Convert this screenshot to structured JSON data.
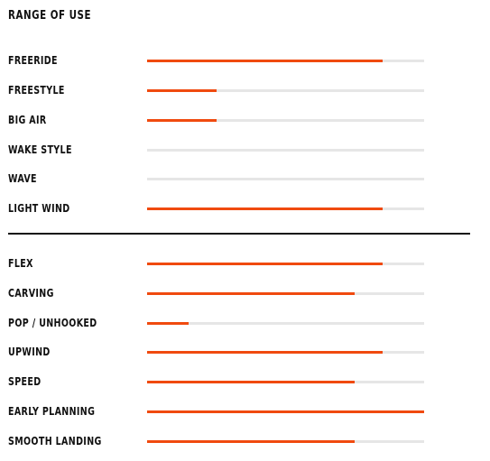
{
  "title": "RANGE OF USE",
  "accent_color": "#f04a0f",
  "track_color": "#e6e6e6",
  "range_of_use": [
    {
      "label": "FREERIDE",
      "value": 0.85
    },
    {
      "label": "FREESTYLE",
      "value": 0.25
    },
    {
      "label": "BIG AIR",
      "value": 0.25
    },
    {
      "label": "WAKE STYLE",
      "value": 0.0
    },
    {
      "label": "WAVE",
      "value": 0.0
    },
    {
      "label": "LIGHT WIND",
      "value": 0.85
    }
  ],
  "characteristics": [
    {
      "label": "FLEX",
      "value": 0.85
    },
    {
      "label": "CARVING",
      "value": 0.75
    },
    {
      "label": "POP / UNHOOKED",
      "value": 0.15
    },
    {
      "label": "UPWIND",
      "value": 0.85
    },
    {
      "label": "SPEED",
      "value": 0.75
    },
    {
      "label": "EARLY PLANNING",
      "value": 1.0
    },
    {
      "label": "SMOOTH LANDING",
      "value": 0.75
    }
  ]
}
